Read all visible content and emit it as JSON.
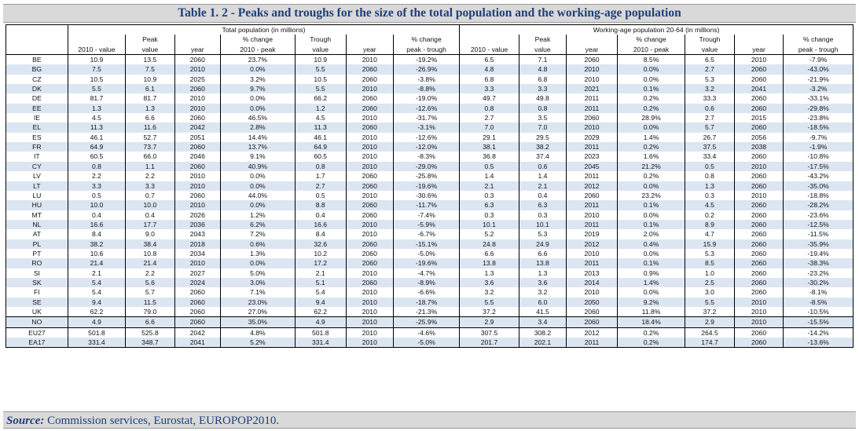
{
  "title": "Table 1. 2 - Peaks and troughs for the size of the total population and the working-age population",
  "header": {
    "group_total": "Total population (in millions)",
    "group_working": "Working-age population 20-64 (in millions)",
    "peak": "Peak",
    "trough": "Trough",
    "pct_change": "% change",
    "col_2010_value": "2010 - value",
    "col_value": "value",
    "col_year": "year",
    "col_2010_peak": "2010 - peak",
    "col_peak_trough": "peak - trough"
  },
  "rows": [
    {
      "c": "BE",
      "t": [
        "10.9",
        "13.5",
        "2060",
        "23.7%",
        "10.9",
        "2010",
        "-19.2%"
      ],
      "w": [
        "6.5",
        "7.1",
        "2060",
        "8.5%",
        "6.5",
        "2010",
        "-7.9%"
      ]
    },
    {
      "c": "BG",
      "t": [
        "7.5",
        "7.5",
        "2010",
        "0.0%",
        "5.5",
        "2060",
        "-26.9%"
      ],
      "w": [
        "4.8",
        "4.8",
        "2010",
        "0.0%",
        "2.7",
        "2060",
        "-43.0%"
      ]
    },
    {
      "c": "CZ",
      "t": [
        "10.5",
        "10.9",
        "2025",
        "3.2%",
        "10.5",
        "2060",
        "-3.8%"
      ],
      "w": [
        "6.8",
        "6.8",
        "2010",
        "0.0%",
        "5.3",
        "2060",
        "-21.9%"
      ]
    },
    {
      "c": "DK",
      "t": [
        "5.5",
        "6.1",
        "2060",
        "9.7%",
        "5.5",
        "2010",
        "-8.8%"
      ],
      "w": [
        "3.3",
        "3.3",
        "2021",
        "0.1%",
        "3.2",
        "2041",
        "-3.2%"
      ]
    },
    {
      "c": "DE",
      "t": [
        "81.7",
        "81.7",
        "2010",
        "0.0%",
        "66.2",
        "2060",
        "-19.0%"
      ],
      "w": [
        "49.7",
        "49.8",
        "2011",
        "0.2%",
        "33.3",
        "2060",
        "-33.1%"
      ]
    },
    {
      "c": "EE",
      "t": [
        "1.3",
        "1.3",
        "2010",
        "0.0%",
        "1.2",
        "2060",
        "-12.6%"
      ],
      "w": [
        "0.8",
        "0.8",
        "2011",
        "0.2%",
        "0.6",
        "2060",
        "-29.8%"
      ]
    },
    {
      "c": "IE",
      "t": [
        "4.5",
        "6.6",
        "2060",
        "46.5%",
        "4.5",
        "2010",
        "-31.7%"
      ],
      "w": [
        "2.7",
        "3.5",
        "2060",
        "28.9%",
        "2.7",
        "2015",
        "-23.8%"
      ]
    },
    {
      "c": "EL",
      "t": [
        "11.3",
        "11.6",
        "2042",
        "2.8%",
        "11.3",
        "2060",
        "-3.1%"
      ],
      "w": [
        "7.0",
        "7.0",
        "2010",
        "0.0%",
        "5.7",
        "2060",
        "-18.5%"
      ]
    },
    {
      "c": "ES",
      "t": [
        "46.1",
        "52.7",
        "2051",
        "14.4%",
        "46.1",
        "2010",
        "-12.6%"
      ],
      "w": [
        "29.1",
        "29.5",
        "2029",
        "1.4%",
        "26.7",
        "2056",
        "-9.7%"
      ]
    },
    {
      "c": "FR",
      "t": [
        "64.9",
        "73.7",
        "2060",
        "13.7%",
        "64.9",
        "2010",
        "-12.0%"
      ],
      "w": [
        "38.1",
        "38.2",
        "2011",
        "0.2%",
        "37.5",
        "2038",
        "-1.9%"
      ]
    },
    {
      "c": "IT",
      "t": [
        "60.5",
        "66.0",
        "2046",
        "9.1%",
        "60.5",
        "2010",
        "-8.3%"
      ],
      "w": [
        "36.8",
        "37.4",
        "2023",
        "1.6%",
        "33.4",
        "2060",
        "-10.8%"
      ]
    },
    {
      "c": "CY",
      "t": [
        "0.8",
        "1.1",
        "2060",
        "40.9%",
        "0.8",
        "2010",
        "-29.0%"
      ],
      "w": [
        "0.5",
        "0.6",
        "2045",
        "21.2%",
        "0.5",
        "2010",
        "-17.5%"
      ]
    },
    {
      "c": "LV",
      "t": [
        "2.2",
        "2.2",
        "2010",
        "0.0%",
        "1.7",
        "2060",
        "-25.8%"
      ],
      "w": [
        "1.4",
        "1.4",
        "2011",
        "0.2%",
        "0.8",
        "2060",
        "-43.2%"
      ]
    },
    {
      "c": "LT",
      "t": [
        "3.3",
        "3.3",
        "2010",
        "0.0%",
        "2.7",
        "2060",
        "-19.6%"
      ],
      "w": [
        "2.1",
        "2.1",
        "2012",
        "0.0%",
        "1.3",
        "2060",
        "-35.0%"
      ]
    },
    {
      "c": "LU",
      "t": [
        "0.5",
        "0.7",
        "2060",
        "44.0%",
        "0.5",
        "2010",
        "-30.6%"
      ],
      "w": [
        "0.3",
        "0.4",
        "2060",
        "23.2%",
        "0.3",
        "2010",
        "-18.8%"
      ]
    },
    {
      "c": "HU",
      "t": [
        "10.0",
        "10.0",
        "2010",
        "0.0%",
        "8.8",
        "2060",
        "-11.7%"
      ],
      "w": [
        "6.3",
        "6.3",
        "2011",
        "0.1%",
        "4.5",
        "2060",
        "-28.2%"
      ]
    },
    {
      "c": "MT",
      "t": [
        "0.4",
        "0.4",
        "2026",
        "1.2%",
        "0.4",
        "2060",
        "-7.4%"
      ],
      "w": [
        "0.3",
        "0.3",
        "2010",
        "0.0%",
        "0.2",
        "2060",
        "-23.6%"
      ]
    },
    {
      "c": "NL",
      "t": [
        "16.6",
        "17.7",
        "2036",
        "6.2%",
        "16.6",
        "2010",
        "-5.9%"
      ],
      "w": [
        "10.1",
        "10.1",
        "2011",
        "0.1%",
        "8.9",
        "2060",
        "-12.5%"
      ]
    },
    {
      "c": "AT",
      "t": [
        "8.4",
        "9.0",
        "2043",
        "7.2%",
        "8.4",
        "2010",
        "-6.7%"
      ],
      "w": [
        "5.2",
        "5.3",
        "2019",
        "2.0%",
        "4.7",
        "2060",
        "-11.5%"
      ]
    },
    {
      "c": "PL",
      "t": [
        "38.2",
        "38.4",
        "2018",
        "0.6%",
        "32.6",
        "2060",
        "-15.1%"
      ],
      "w": [
        "24.8",
        "24.9",
        "2012",
        "0.4%",
        "15.9",
        "2060",
        "-35.9%"
      ]
    },
    {
      "c": "PT",
      "t": [
        "10.6",
        "10.8",
        "2034",
        "1.3%",
        "10.2",
        "2060",
        "-5.0%"
      ],
      "w": [
        "6.6",
        "6.6",
        "2010",
        "0.0%",
        "5.3",
        "2060",
        "-19.4%"
      ]
    },
    {
      "c": "RO",
      "t": [
        "21.4",
        "21.4",
        "2010",
        "0.0%",
        "17.2",
        "2060",
        "-19.6%"
      ],
      "w": [
        "13.8",
        "13.8",
        "2011",
        "0.1%",
        "8.5",
        "2060",
        "-38.3%"
      ]
    },
    {
      "c": "SI",
      "t": [
        "2.1",
        "2.2",
        "2027",
        "5.0%",
        "2.1",
        "2010",
        "-4.7%"
      ],
      "w": [
        "1.3",
        "1.3",
        "2013",
        "0.9%",
        "1.0",
        "2060",
        "-23.2%"
      ]
    },
    {
      "c": "SK",
      "t": [
        "5.4",
        "5.6",
        "2024",
        "3.0%",
        "5.1",
        "2060",
        "-8.9%"
      ],
      "w": [
        "3.6",
        "3.6",
        "2014",
        "1.4%",
        "2.5",
        "2060",
        "-30.2%"
      ]
    },
    {
      "c": "FI",
      "t": [
        "5.4",
        "5.7",
        "2060",
        "7.1%",
        "5.4",
        "2010",
        "-6.6%"
      ],
      "w": [
        "3.2",
        "3.2",
        "2010",
        "0.0%",
        "3.0",
        "2060",
        "-8.1%"
      ]
    },
    {
      "c": "SE",
      "t": [
        "9.4",
        "11.5",
        "2060",
        "23.0%",
        "9.4",
        "2010",
        "-18.7%"
      ],
      "w": [
        "5.5",
        "6.0",
        "2050",
        "9.2%",
        "5.5",
        "2010",
        "-8.5%"
      ]
    },
    {
      "c": "UK",
      "t": [
        "62.2",
        "79.0",
        "2060",
        "27.0%",
        "62.2",
        "2010",
        "-21.3%"
      ],
      "w": [
        "37.2",
        "41.5",
        "2060",
        "11.8%",
        "37.2",
        "2010",
        "-10.5%"
      ]
    },
    {
      "c": "NO",
      "t": [
        "4.9",
        "6.6",
        "2060",
        "35.0%",
        "4.9",
        "2010",
        "-25.9%"
      ],
      "w": [
        "2.9",
        "3.4",
        "2060",
        "18.4%",
        "2.9",
        "2010",
        "-15.5%"
      ]
    },
    {
      "c": "EU27",
      "t": [
        "501.8",
        "525.8",
        "2042",
        "4.8%",
        "501.8",
        "2010",
        "-4.6%"
      ],
      "w": [
        "307.5",
        "308.2",
        "2012",
        "0.2%",
        "264.5",
        "2060",
        "-14.2%"
      ]
    },
    {
      "c": "EA17",
      "t": [
        "331.4",
        "348.7",
        "2041",
        "5.2%",
        "331.4",
        "2010",
        "-5.0%"
      ],
      "w": [
        "201.7",
        "202.1",
        "2011",
        "0.2%",
        "174.7",
        "2060",
        "-13.6%"
      ]
    }
  ],
  "source_label": "Source:",
  "source_text": " Commission services, Eurostat, EUROPOP2010."
}
